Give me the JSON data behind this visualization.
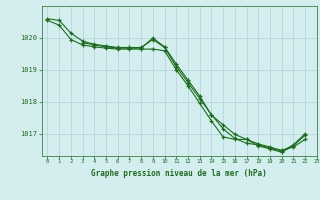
{
  "title": "Graphe pression niveau de la mer (hPa)",
  "background_color": "#d4eef0",
  "grid_color": "#aed4d8",
  "line_color": "#1a6e1a",
  "xlim": [
    -0.5,
    23
  ],
  "ylim": [
    1016.3,
    1021.0
  ],
  "yticks": [
    1017,
    1018,
    1019,
    1020
  ],
  "xticks": [
    0,
    1,
    2,
    3,
    4,
    5,
    6,
    7,
    8,
    9,
    10,
    11,
    12,
    13,
    14,
    15,
    16,
    17,
    18,
    19,
    20,
    21,
    22,
    23
  ],
  "series1": [
    1020.6,
    1020.55,
    1020.15,
    1019.9,
    1019.8,
    1019.75,
    1019.7,
    1019.7,
    1019.7,
    1019.95,
    1019.7,
    1019.1,
    1018.6,
    1018.1,
    1017.6,
    1017.15,
    1016.85,
    1016.7,
    1016.65,
    1016.55,
    1016.45,
    1016.65,
    1017.0,
    null
  ],
  "series2": [
    1020.55,
    1020.4,
    1019.95,
    1019.78,
    1019.72,
    1019.68,
    1019.65,
    1019.65,
    1019.65,
    1019.65,
    1019.6,
    1019.0,
    1018.5,
    1017.95,
    1017.4,
    1016.9,
    1016.82,
    1016.82,
    1016.68,
    1016.58,
    1016.48,
    1016.58,
    1016.82,
    null
  ],
  "series3": [
    null,
    null,
    null,
    1019.85,
    1019.78,
    1019.72,
    1019.68,
    1019.68,
    1019.68,
    1020.0,
    1019.72,
    1019.18,
    1018.68,
    1018.18,
    1017.58,
    1017.28,
    1016.98,
    1016.82,
    1016.62,
    1016.52,
    1016.42,
    1016.62,
    1016.95,
    null
  ]
}
